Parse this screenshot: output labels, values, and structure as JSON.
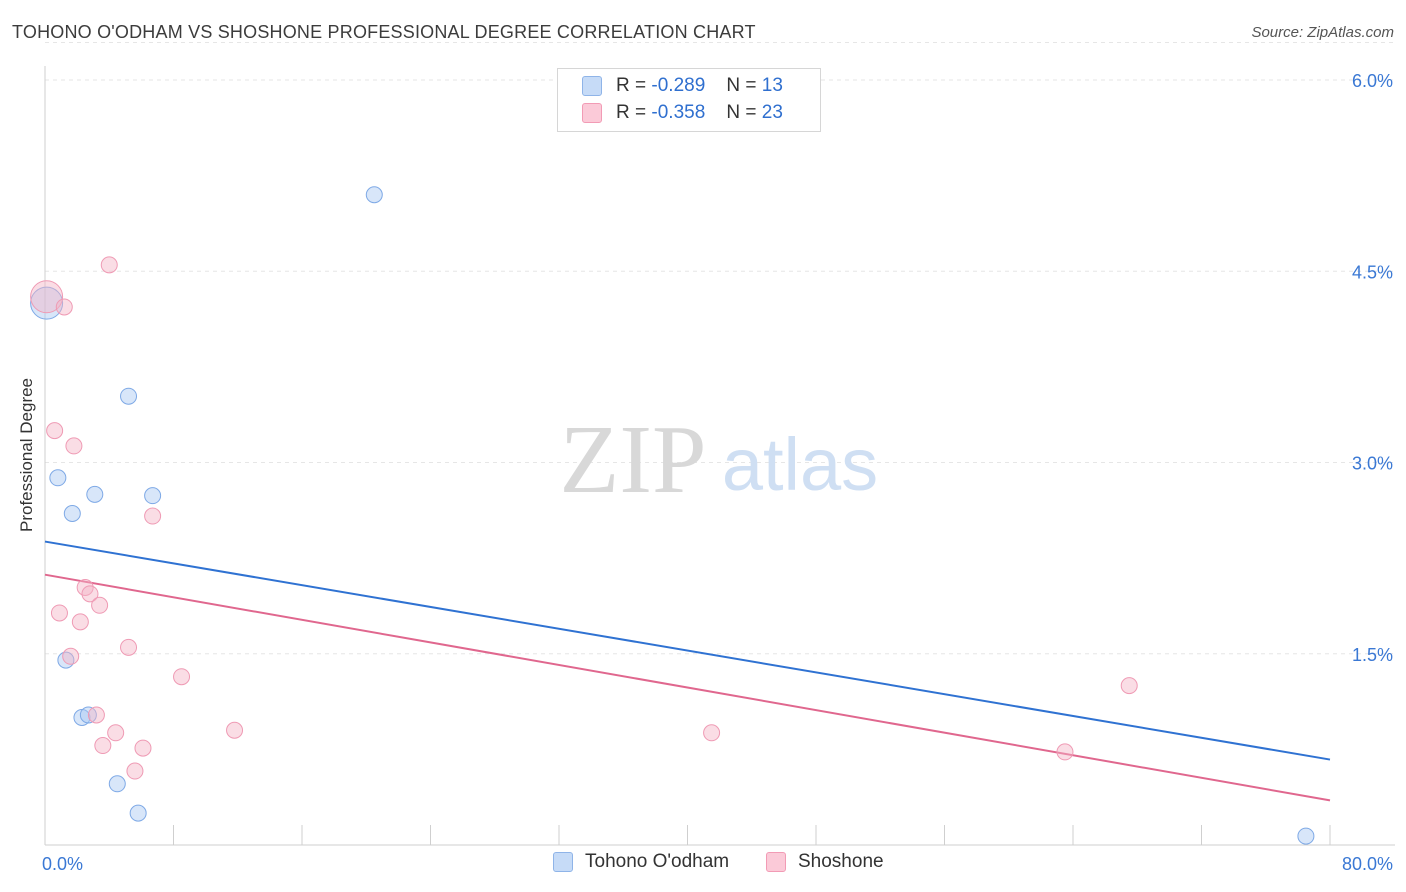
{
  "title": "TOHONO O'ODHAM VS SHOSHONE PROFESSIONAL DEGREE CORRELATION CHART",
  "source": "Source: ZipAtlas.com",
  "watermark": {
    "zip": "ZIP",
    "atlas": "atlas"
  },
  "legend_top": [
    {
      "r_label": "R =",
      "r_value": "-0.289",
      "n_label": "N =",
      "n_value": "13",
      "color": "#a9c8f2"
    },
    {
      "r_label": "R =",
      "r_value": "-0.358",
      "n_label": "N =",
      "n_value": "23",
      "color": "#f5b3c6"
    }
  ],
  "chart_data": {
    "type": "scatter",
    "title": "TOHONO O'ODHAM VS SHOSHONE PROFESSIONAL DEGREE CORRELATION CHART",
    "xlabel": "",
    "ylabel": "Professional Degree",
    "xlim": [
      0,
      80
    ],
    "ylim": [
      0,
      6.2
    ],
    "x_tick_labels": [
      "0.0%",
      "80.0%"
    ],
    "y_ticks": [
      1.5,
      3.0,
      4.5,
      6.0
    ],
    "y_tick_labels": [
      "1.5%",
      "3.0%",
      "4.5%",
      "6.0%"
    ],
    "grid": true,
    "series": [
      {
        "name": "Tohono O'odham",
        "color": "#a9c8f2",
        "line_color": "#2f72d2",
        "points": [
          [
            0.1,
            4.25
          ],
          [
            20.5,
            5.1
          ],
          [
            5.2,
            3.52
          ],
          [
            0.8,
            2.88
          ],
          [
            3.1,
            2.75
          ],
          [
            6.7,
            2.74
          ],
          [
            1.7,
            2.6
          ],
          [
            1.3,
            1.45
          ],
          [
            2.3,
            1.0
          ],
          [
            2.7,
            1.02
          ],
          [
            4.5,
            0.48
          ],
          [
            5.8,
            0.25
          ],
          [
            78.5,
            0.07
          ]
        ],
        "trend": {
          "x": [
            0,
            80
          ],
          "y": [
            2.38,
            0.67
          ]
        }
      },
      {
        "name": "Shoshone",
        "color": "#f5b3c6",
        "line_color": "#e0678e",
        "points": [
          [
            0.1,
            4.3
          ],
          [
            4.0,
            4.55
          ],
          [
            1.2,
            4.22
          ],
          [
            0.6,
            3.25
          ],
          [
            1.8,
            3.13
          ],
          [
            6.7,
            2.58
          ],
          [
            2.5,
            2.02
          ],
          [
            2.8,
            1.97
          ],
          [
            3.4,
            1.88
          ],
          [
            0.9,
            1.82
          ],
          [
            2.2,
            1.75
          ],
          [
            5.2,
            1.55
          ],
          [
            1.6,
            1.48
          ],
          [
            8.5,
            1.32
          ],
          [
            3.2,
            1.02
          ],
          [
            4.4,
            0.88
          ],
          [
            3.6,
            0.78
          ],
          [
            6.1,
            0.76
          ],
          [
            5.6,
            0.58
          ],
          [
            11.8,
            0.9
          ],
          [
            41.5,
            0.88
          ],
          [
            67.5,
            1.25
          ],
          [
            63.5,
            0.73
          ]
        ],
        "trend": {
          "x": [
            0,
            80
          ],
          "y": [
            2.12,
            0.35
          ]
        }
      }
    ]
  }
}
